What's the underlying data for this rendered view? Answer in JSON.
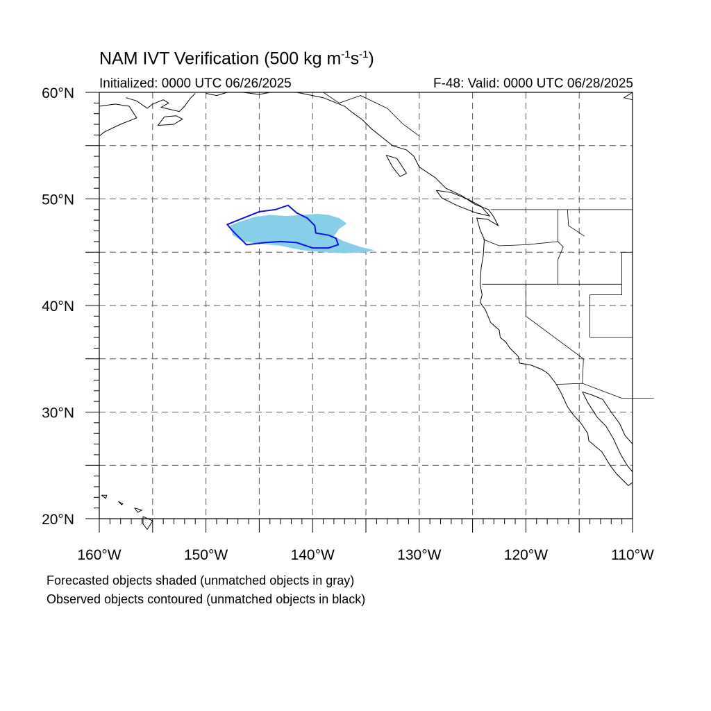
{
  "title": {
    "prefix": "NAM IVT Verification (500 kg m",
    "exp1": "-1",
    "mid": "s",
    "exp2": "-1",
    "suffix": ")"
  },
  "initialized": "Initialized: 0000 UTC 06/26/2025",
  "valid": "F-48: Valid: 0000 UTC 06/28/2025",
  "axes": {
    "lat_labels": [
      "20°N",
      "30°N",
      "40°N",
      "50°N",
      "60°N"
    ],
    "lon_labels": [
      "160°W",
      "150°W",
      "140°W",
      "130°W",
      "120°W",
      "110°W"
    ],
    "lon_range": [
      -160,
      -110
    ],
    "lat_range": [
      20,
      60
    ]
  },
  "legend": {
    "forecast_note": "Forecasted objects shaded (unmatched objects in gray)",
    "observed_note": "Observed objects contoured (unmatched objects in black)"
  },
  "colors": {
    "forecast_fill": "#87CEE8",
    "observed_contour": "#1010E0",
    "coastline": "#000000",
    "grid": "#555555"
  },
  "objects": {
    "forecast_shaded": {
      "matched": true,
      "polygon": [
        [
          -147.7,
          47.5
        ],
        [
          -147.0,
          47.8
        ],
        [
          -145.5,
          48.3
        ],
        [
          -144.0,
          48.5
        ],
        [
          -142.5,
          48.4
        ],
        [
          -141.0,
          48.5
        ],
        [
          -139.5,
          48.6
        ],
        [
          -138.5,
          48.5
        ],
        [
          -137.5,
          48.2
        ],
        [
          -136.8,
          47.7
        ],
        [
          -137.5,
          47.2
        ],
        [
          -138.0,
          46.5
        ],
        [
          -137.0,
          46.0
        ],
        [
          -135.5,
          45.5
        ],
        [
          -134.2,
          45.2
        ],
        [
          -135.0,
          45.0
        ],
        [
          -137.0,
          44.9
        ],
        [
          -139.0,
          45.0
        ],
        [
          -141.0,
          45.2
        ],
        [
          -143.0,
          45.6
        ],
        [
          -145.0,
          45.8
        ],
        [
          -146.5,
          46.0
        ],
        [
          -147.5,
          46.6
        ]
      ]
    },
    "observed_contour": {
      "matched": true,
      "polygon": [
        [
          -148.0,
          47.6
        ],
        [
          -146.5,
          48.2
        ],
        [
          -145.0,
          48.8
        ],
        [
          -143.5,
          49.0
        ],
        [
          -142.3,
          49.4
        ],
        [
          -141.5,
          48.7
        ],
        [
          -140.5,
          48.2
        ],
        [
          -139.8,
          47.5
        ],
        [
          -139.7,
          46.8
        ],
        [
          -138.5,
          46.6
        ],
        [
          -137.8,
          46.3
        ],
        [
          -137.6,
          45.7
        ],
        [
          -138.5,
          45.4
        ],
        [
          -140.0,
          45.4
        ],
        [
          -141.5,
          45.9
        ],
        [
          -143.0,
          46.0
        ],
        [
          -144.5,
          45.9
        ],
        [
          -146.2,
          45.7
        ],
        [
          -146.8,
          46.3
        ],
        [
          -147.5,
          47.0
        ]
      ]
    }
  }
}
